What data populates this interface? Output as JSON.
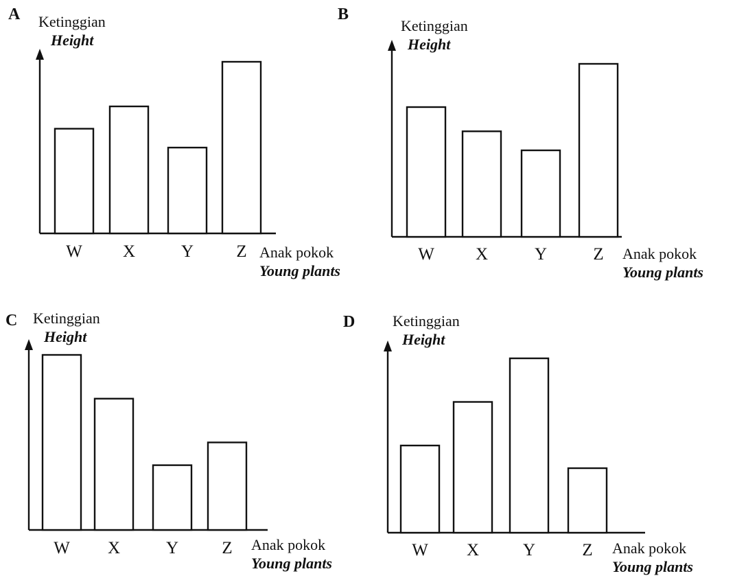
{
  "chart_data": [
    {
      "type": "bar",
      "panel_label": "A",
      "ylabel": "Ketinggian",
      "ylabel_en": "Height",
      "xlabel": "Anak pokok",
      "xlabel_en": "Young plants",
      "categories": [
        "W",
        "X",
        "Y",
        "Z"
      ],
      "values": [
        61,
        74,
        50,
        100
      ],
      "ylim": [
        0,
        100
      ],
      "grid": false,
      "legend": "none"
    },
    {
      "type": "bar",
      "panel_label": "B",
      "ylabel": "Ketinggian",
      "ylabel_en": "Height",
      "xlabel": "Anak pokok",
      "xlabel_en": "Young plants",
      "categories": [
        "W",
        "X",
        "Y",
        "Z"
      ],
      "values": [
        75,
        61,
        50,
        100
      ],
      "ylim": [
        0,
        100
      ],
      "grid": false,
      "legend": "none"
    },
    {
      "type": "bar",
      "panel_label": "C",
      "ylabel": "Ketinggian",
      "ylabel_en": "Height",
      "xlabel": "Anak pokok",
      "xlabel_en": "Young plants",
      "categories": [
        "W",
        "X",
        "Y",
        "Z"
      ],
      "values": [
        100,
        75,
        37,
        50
      ],
      "ylim": [
        0,
        100
      ],
      "grid": false,
      "legend": "none"
    },
    {
      "type": "bar",
      "panel_label": "D",
      "ylabel": "Ketinggian",
      "ylabel_en": "Height",
      "xlabel": "Anak pokok",
      "xlabel_en": "Young plants",
      "categories": [
        "W",
        "X",
        "Y",
        "Z"
      ],
      "values": [
        50,
        75,
        100,
        37
      ],
      "ylim": [
        0,
        100
      ],
      "grid": false,
      "legend": "none"
    }
  ]
}
